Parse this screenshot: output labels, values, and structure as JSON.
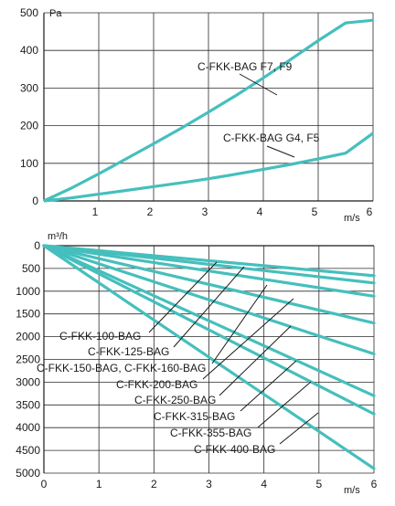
{
  "colors": {
    "curve": "#45bfbd",
    "grid": "#2b2b2b",
    "axis": "#1a1a1a",
    "leader": "#1a1a1a"
  },
  "chart_data": [
    {
      "type": "line",
      "title": "",
      "xlabel": "m/s",
      "ylabel": "Pa",
      "xlim": [
        0,
        6
      ],
      "ylim": [
        0,
        500
      ],
      "x_ticks": [
        1,
        2,
        3,
        4,
        5,
        6
      ],
      "y_ticks": [
        0,
        100,
        200,
        300,
        400,
        500
      ],
      "grid": true,
      "series": [
        {
          "name": "C-FKK-BAG  F7, F9",
          "x": [
            0,
            0.5,
            1,
            1.5,
            2,
            2.5,
            3,
            3.5,
            4,
            4.5,
            5,
            5.5,
            6
          ],
          "y": [
            0,
            34,
            72,
            112,
            152,
            193,
            236,
            280,
            327,
            376,
            426,
            473,
            480
          ]
        },
        {
          "name": "C-FKK-BAG G4, F5",
          "x": [
            0,
            0.5,
            1,
            1.5,
            2,
            2.5,
            3,
            3.5,
            4,
            4.5,
            5,
            5.5,
            6
          ],
          "y": [
            0,
            8,
            18,
            28,
            38,
            48,
            59,
            71,
            84,
            97,
            112,
            127,
            180
          ]
        }
      ],
      "annotations": [
        {
          "text": "C-FKK-BAG  F7, F9",
          "series": 0,
          "at_x": 4.1
        },
        {
          "text": "C-FKK-BAG G4, F5",
          "series": 1,
          "at_x": 4.6
        }
      ]
    },
    {
      "type": "line",
      "title": "",
      "xlabel": "m/s",
      "ylabel": "m³/h",
      "xlim": [
        0,
        6
      ],
      "ylim": [
        0,
        5000
      ],
      "y_inverted": true,
      "x_ticks": [
        0,
        1,
        2,
        3,
        4,
        5,
        6
      ],
      "y_ticks": [
        0,
        500,
        1000,
        1500,
        2000,
        2500,
        3000,
        3500,
        4000,
        4500,
        5000
      ],
      "grid": true,
      "series": [
        {
          "name": "C-FKK-100-BAG",
          "x": [
            0,
            6
          ],
          "y": [
            0,
            660
          ]
        },
        {
          "name": "C-FKK-125-BAG",
          "x": [
            0,
            6
          ],
          "y": [
            0,
            820
          ]
        },
        {
          "name": "C-FKK-150-BAG, C-FKK-160-BAG",
          "x": [
            0,
            6
          ],
          "y": [
            0,
            1110
          ]
        },
        {
          "name": "C-FKK-200-BAG",
          "x": [
            0,
            6
          ],
          "y": [
            0,
            1700
          ]
        },
        {
          "name": "C-FKK-250-BAG",
          "x": [
            0,
            6
          ],
          "y": [
            0,
            2380
          ]
        },
        {
          "name": "C-FKK-315-BAG",
          "x": [
            0,
            6
          ],
          "y": [
            0,
            3300
          ]
        },
        {
          "name": "C-FKK-355-BAG",
          "x": [
            0,
            6
          ],
          "y": [
            0,
            3700
          ]
        },
        {
          "name": "C-FKK-400-BAG",
          "x": [
            0,
            6
          ],
          "y": [
            0,
            4900
          ]
        }
      ],
      "annotations": [
        {
          "text": "C-FKK-100-BAG",
          "series": 0
        },
        {
          "text": "C-FKK-125-BAG",
          "series": 1
        },
        {
          "text": "C-FKK-150-BAG, C-FKK-160-BAG",
          "series": 2
        },
        {
          "text": "C-FKK-200-BAG",
          "series": 3
        },
        {
          "text": "C-FKK-250-BAG",
          "series": 4
        },
        {
          "text": "C-FKK-315-BAG",
          "series": 5
        },
        {
          "text": "C-FKK-355-BAG",
          "series": 6
        },
        {
          "text": "C-FKK-400-BAG",
          "series": 7
        }
      ]
    }
  ]
}
